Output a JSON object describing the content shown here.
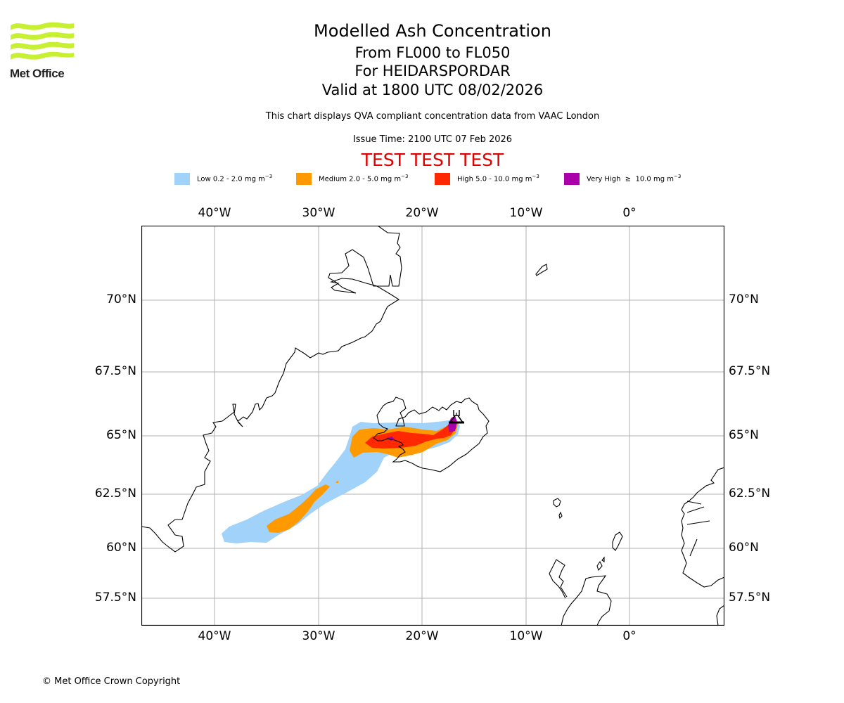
{
  "logo": {
    "text": "Met Office",
    "brand_color": "#c8f032"
  },
  "header": {
    "title": "Modelled Ash Concentration",
    "levels": "From FL000 to FL050",
    "volcano": "For HEIDARSPORDAR",
    "valid": "Valid at 1800 UTC 08/02/2026",
    "description": "This chart displays QVA compliant concentration data from VAAC London",
    "issue_time": "Issue Time: 2100 UTC 07 Feb 2026",
    "test_banner": "TEST TEST TEST"
  },
  "legend": [
    {
      "label": "Low 0.2 - 2.0 mg m",
      "unit_exp": "−3",
      "color": "#a0d2fa"
    },
    {
      "label": "Medium 2.0 - 5.0 mg m",
      "unit_exp": "−3",
      "color": "#ff9900"
    },
    {
      "label": "High 5.0 - 10.0 mg m",
      "unit_exp": "−3",
      "color": "#ff2800"
    },
    {
      "label": "Very High  ≥  10.0 mg m",
      "unit_exp": "−3",
      "color": "#aa00aa"
    }
  ],
  "map": {
    "extent": {
      "lon": [
        -47,
        9
      ],
      "lat": [
        56.3,
        72.2
      ]
    },
    "lon_ticks": [
      {
        "value": -40,
        "label": "40°W"
      },
      {
        "value": -30,
        "label": "30°W"
      },
      {
        "value": -20,
        "label": "20°W"
      },
      {
        "value": -10,
        "label": "10°W"
      },
      {
        "value": 0,
        "label": "0°"
      }
    ],
    "lat_ticks": [
      {
        "value": 70,
        "label": "70°N"
      },
      {
        "value": 67.5,
        "label": "67.5°N"
      },
      {
        "value": 65,
        "label": "65°N"
      },
      {
        "value": 62.5,
        "label": "62.5°N"
      },
      {
        "value": 60,
        "label": "60°N"
      },
      {
        "value": 57.5,
        "label": "57.5°N"
      }
    ],
    "volcano_marker": {
      "name": "HEIDARSPORDAR",
      "symbol": "volcano-icon",
      "lon": -16.8,
      "lat": 65.8
    },
    "grid_color": "#b0b0b0"
  },
  "footer": {
    "copyright": "© Met Office Crown Copyright"
  }
}
